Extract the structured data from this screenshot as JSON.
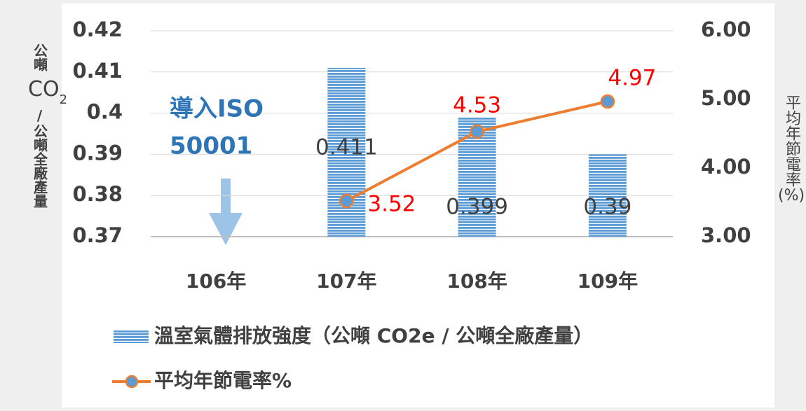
{
  "chart_data": {
    "type": "bar_line",
    "y_label": [
      "公噸",
      "CO",
      "2",
      "/公噸全廠產量"
    ],
    "y2_label": [
      "平均年節電率",
      "(%)"
    ],
    "annotation": [
      "導入ISO",
      "50001"
    ],
    "categories": [
      "106年",
      "107年",
      "108年",
      "109年"
    ],
    "series": [
      {
        "name": "溫室氣體排放強度（公噸 CO2e / 公噸全廠產量）",
        "color": "#5b9bd5",
        "values": [
          null,
          0.411,
          0.399,
          0.39
        ],
        "value_labels": [
          null,
          "0.411",
          "0.399",
          "0.39"
        ]
      },
      {
        "name": "平均年節電率%",
        "color": "#ed7d31",
        "marker_color": "#5b9bd5",
        "label_color": "#ff0000",
        "axis": "y2",
        "values": [
          null,
          3.52,
          4.53,
          4.97
        ]
      }
    ],
    "ylim": [
      0.37,
      0.42
    ],
    "yticks": [
      0.37,
      0.38,
      0.39,
      0.4,
      0.41,
      0.42
    ],
    "y2lim": [
      3,
      6
    ],
    "y2ticks": [
      {
        "value": 3,
        "label": "3.00"
      },
      {
        "value": 4,
        "label": "4.00"
      },
      {
        "value": 5,
        "label": "5.00"
      },
      {
        "value": 6,
        "label": "6.00"
      }
    ],
    "grid": true
  }
}
